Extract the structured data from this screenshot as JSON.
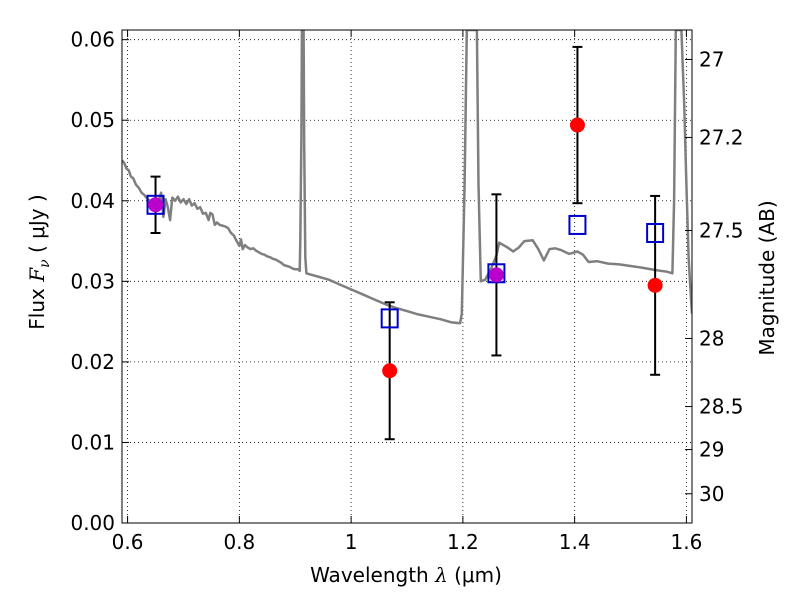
{
  "chart_data": {
    "type": "scatter",
    "title": "",
    "xlabel": {
      "text": "Wavelength",
      "symbol": "λ",
      "unit": "(μm)"
    },
    "ylabel": {
      "text": "Flux",
      "symbol": "F",
      "subscript": "ν",
      "unit": "( μJy )"
    },
    "y2label": "Magnitude (AB)",
    "xlim": [
      0.59,
      1.61
    ],
    "ylim": [
      0.0,
      0.0612
    ],
    "grid": true,
    "x_ticks": [
      {
        "value": 0.6,
        "label": "0.6"
      },
      {
        "value": 0.8,
        "label": "0.8"
      },
      {
        "value": 1.0,
        "label": "1"
      },
      {
        "value": 1.2,
        "label": "1.2"
      },
      {
        "value": 1.4,
        "label": "1.4"
      },
      {
        "value": 1.6,
        "label": "1.6"
      }
    ],
    "y_ticks": [
      {
        "value": 0.0,
        "label": "0.00"
      },
      {
        "value": 0.01,
        "label": "0.01"
      },
      {
        "value": 0.02,
        "label": "0.02"
      },
      {
        "value": 0.03,
        "label": "0.03"
      },
      {
        "value": 0.04,
        "label": "0.04"
      },
      {
        "value": 0.05,
        "label": "0.05"
      },
      {
        "value": 0.06,
        "label": "0.06"
      }
    ],
    "y2_ticks": [
      {
        "value": 27,
        "label": "27"
      },
      {
        "value": 27.2,
        "label": "27.2"
      },
      {
        "value": 27.5,
        "label": "27.5"
      },
      {
        "value": 28,
        "label": "28"
      },
      {
        "value": 28.5,
        "label": "28.5"
      },
      {
        "value": 29,
        "label": "29"
      },
      {
        "value": 30,
        "label": "30"
      }
    ],
    "series": [
      {
        "kind": "model-spectrum",
        "color": "#7f7f7f",
        "points": [
          [
            0.59,
            0.045
          ],
          [
            0.594,
            0.0447
          ],
          [
            0.598,
            0.044
          ],
          [
            0.602,
            0.0438
          ],
          [
            0.606,
            0.043
          ],
          [
            0.61,
            0.0428
          ],
          [
            0.615,
            0.042
          ],
          [
            0.62,
            0.0416
          ],
          [
            0.625,
            0.041
          ],
          [
            0.63,
            0.0407
          ],
          [
            0.635,
            0.0403
          ],
          [
            0.64,
            0.04
          ],
          [
            0.645,
            0.0397
          ],
          [
            0.65,
            0.04
          ],
          [
            0.655,
            0.0398
          ],
          [
            0.66,
            0.041
          ],
          [
            0.664,
            0.038
          ],
          [
            0.668,
            0.0402
          ],
          [
            0.672,
            0.0392
          ],
          [
            0.676,
            0.0376
          ],
          [
            0.68,
            0.0404
          ],
          [
            0.685,
            0.04
          ],
          [
            0.69,
            0.0405
          ],
          [
            0.695,
            0.0398
          ],
          [
            0.7,
            0.0402
          ],
          [
            0.705,
            0.0396
          ],
          [
            0.71,
            0.0402
          ],
          [
            0.715,
            0.0394
          ],
          [
            0.72,
            0.0397
          ],
          [
            0.725,
            0.039
          ],
          [
            0.73,
            0.0392
          ],
          [
            0.735,
            0.0384
          ],
          [
            0.74,
            0.0385
          ],
          [
            0.745,
            0.0376
          ],
          [
            0.748,
            0.0385
          ],
          [
            0.752,
            0.0383
          ],
          [
            0.756,
            0.037
          ],
          [
            0.76,
            0.0373
          ],
          [
            0.765,
            0.037
          ],
          [
            0.77,
            0.0369
          ],
          [
            0.775,
            0.0368
          ],
          [
            0.78,
            0.0366
          ],
          [
            0.785,
            0.036
          ],
          [
            0.79,
            0.0357
          ],
          [
            0.795,
            0.035
          ],
          [
            0.8,
            0.0344
          ],
          [
            0.803,
            0.0352
          ],
          [
            0.806,
            0.034
          ],
          [
            0.81,
            0.0345
          ],
          [
            0.815,
            0.0342
          ],
          [
            0.82,
            0.034
          ],
          [
            0.825,
            0.0341
          ],
          [
            0.83,
            0.0338
          ],
          [
            0.835,
            0.0336
          ],
          [
            0.84,
            0.0334
          ],
          [
            0.845,
            0.0333
          ],
          [
            0.85,
            0.0331
          ],
          [
            0.855,
            0.033
          ],
          [
            0.86,
            0.0328
          ],
          [
            0.865,
            0.0327
          ],
          [
            0.87,
            0.0325
          ],
          [
            0.875,
            0.0323
          ],
          [
            0.88,
            0.032
          ],
          [
            0.885,
            0.0319
          ],
          [
            0.89,
            0.0318
          ],
          [
            0.895,
            0.0316
          ],
          [
            0.9,
            0.0315
          ],
          [
            0.905,
            0.0315
          ],
          [
            0.908,
            0.0313
          ],
          [
            0.909,
            0.035
          ],
          [
            0.911,
            0.048
          ],
          [
            0.912,
            0.0612
          ],
          [
            0.915,
            0.0612
          ],
          [
            0.916,
            0.047
          ],
          [
            0.918,
            0.033
          ],
          [
            0.92,
            0.031
          ],
          [
            0.93,
            0.0308
          ],
          [
            0.94,
            0.0306
          ],
          [
            0.95,
            0.0304
          ],
          [
            0.96,
            0.0302
          ],
          [
            0.97,
            0.0299
          ],
          [
            0.98,
            0.0296
          ],
          [
            0.99,
            0.0293
          ],
          [
            1.0,
            0.029
          ],
          [
            1.02,
            0.0284
          ],
          [
            1.04,
            0.0278
          ],
          [
            1.06,
            0.0272
          ],
          [
            1.08,
            0.0267
          ],
          [
            1.1,
            0.0263
          ],
          [
            1.12,
            0.0259
          ],
          [
            1.14,
            0.0256
          ],
          [
            1.16,
            0.0253
          ],
          [
            1.18,
            0.0249
          ],
          [
            1.195,
            0.0248
          ],
          [
            1.198,
            0.026
          ],
          [
            1.203,
            0.042
          ],
          [
            1.207,
            0.0612
          ],
          [
            1.225,
            0.0612
          ],
          [
            1.228,
            0.042
          ],
          [
            1.232,
            0.03
          ],
          [
            1.24,
            0.0302
          ],
          [
            1.25,
            0.0315
          ],
          [
            1.26,
            0.0332
          ],
          [
            1.265,
            0.0348
          ],
          [
            1.27,
            0.0346
          ],
          [
            1.28,
            0.0342
          ],
          [
            1.29,
            0.0337
          ],
          [
            1.3,
            0.0342
          ],
          [
            1.31,
            0.035
          ],
          [
            1.325,
            0.0351
          ],
          [
            1.335,
            0.034
          ],
          [
            1.345,
            0.0326
          ],
          [
            1.355,
            0.034
          ],
          [
            1.365,
            0.0341
          ],
          [
            1.375,
            0.0339
          ],
          [
            1.39,
            0.0334
          ],
          [
            1.405,
            0.0337
          ],
          [
            1.415,
            0.0333
          ],
          [
            1.425,
            0.0324
          ],
          [
            1.44,
            0.0325
          ],
          [
            1.46,
            0.0322
          ],
          [
            1.48,
            0.0321
          ],
          [
            1.5,
            0.0319
          ],
          [
            1.52,
            0.0317
          ],
          [
            1.545,
            0.0314
          ],
          [
            1.565,
            0.0312
          ],
          [
            1.575,
            0.031
          ],
          [
            1.578,
            0.04
          ],
          [
            1.581,
            0.0612
          ],
          [
            1.591,
            0.0612
          ],
          [
            1.596,
            0.052
          ],
          [
            1.6,
            0.042
          ],
          [
            1.604,
            0.033
          ],
          [
            1.608,
            0.028
          ],
          [
            1.61,
            0.026
          ]
        ]
      },
      {
        "kind": "model-photometry",
        "marker": "open-square",
        "color": "#0000cc",
        "points": [
          {
            "x": 0.65,
            "y": 0.0395
          },
          {
            "x": 1.069,
            "y": 0.0254
          },
          {
            "x": 1.26,
            "y": 0.031
          },
          {
            "x": 1.405,
            "y": 0.037
          },
          {
            "x": 1.544,
            "y": 0.036
          }
        ]
      },
      {
        "kind": "observed-photometry",
        "marker": "filled-circle",
        "color": "#ff0000",
        "overlap_color": "#bb00cc",
        "points": [
          {
            "x": 0.65,
            "y": 0.0395,
            "yerr_low": 0.0035,
            "yerr_high": 0.0035
          },
          {
            "x": 1.069,
            "y": 0.0189,
            "yerr_low": 0.0085,
            "yerr_high": 0.0085
          },
          {
            "x": 1.26,
            "y": 0.0308,
            "yerr_low": 0.01,
            "yerr_high": 0.01
          },
          {
            "x": 1.405,
            "y": 0.0494,
            "yerr_low": 0.0097,
            "yerr_high": 0.0097
          },
          {
            "x": 1.544,
            "y": 0.0295,
            "yerr_low": 0.0111,
            "yerr_high": 0.0111
          }
        ]
      }
    ]
  }
}
